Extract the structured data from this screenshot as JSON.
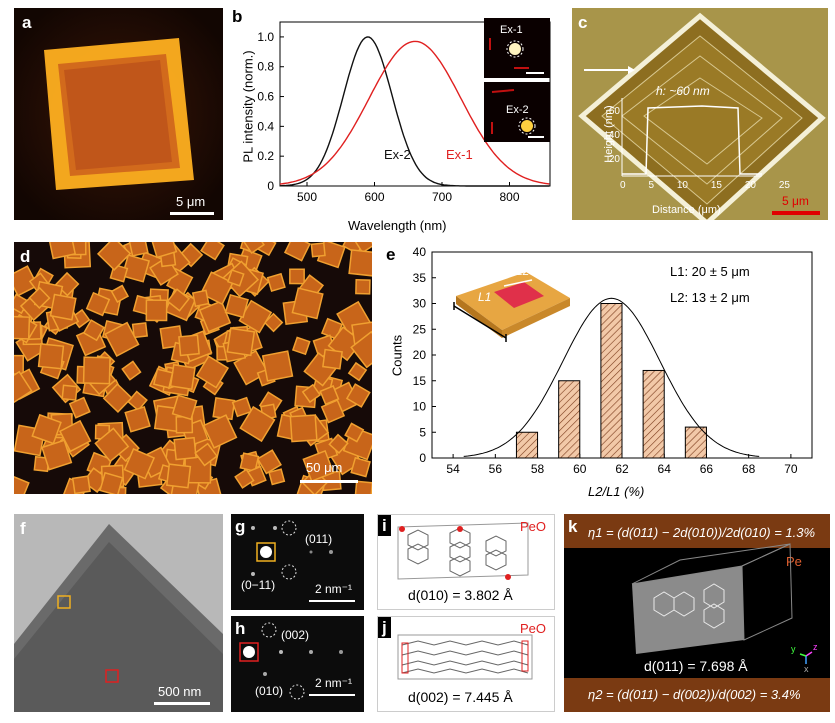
{
  "panels": {
    "a": {
      "label": "a",
      "scale": "5 μm"
    },
    "b": {
      "label": "b",
      "ylabel": "PL intensity (norm.)",
      "xlabel": "Wavelength (nm)",
      "curve_labels": {
        "ex2": "Ex-2",
        "ex1": "Ex-1"
      },
      "inset_labels": {
        "top": "Ex-1",
        "bottom": "Ex-2"
      },
      "xticks": [
        "500",
        "600",
        "700",
        "800"
      ],
      "yticks": [
        "0",
        "0.2",
        "0.4",
        "0.6",
        "0.8",
        "1.0"
      ]
    },
    "c": {
      "label": "c",
      "ylabel": "Height (nm)",
      "xlabel": "Distance (μm)",
      "annotation": "h: ~60 nm",
      "xticks": [
        "0",
        "5",
        "10",
        "15",
        "20",
        "25"
      ],
      "yticks": [
        "0",
        "20",
        "40",
        "60"
      ],
      "scale": "5 μm"
    },
    "d": {
      "label": "d",
      "scale": "50 μm"
    },
    "e": {
      "label": "e",
      "ylabel": "Counts",
      "xlabel": "L2/L1 (%)",
      "l1_text": "L1: 20 ± 5 μm",
      "l2_text": "L2: 13 ± 2 μm",
      "inset_l1": "L1",
      "inset_l2": "L2",
      "xticks": [
        "54",
        "56",
        "58",
        "60",
        "62",
        "64",
        "66",
        "68",
        "70"
      ],
      "yticks": [
        "0",
        "5",
        "10",
        "15",
        "20",
        "25",
        "30",
        "35",
        "40"
      ]
    },
    "f": {
      "label": "f",
      "scale": "500 nm"
    },
    "g": {
      "label": "g",
      "spot1": "(011)",
      "spot2": "(0−11)",
      "scale": "2 nm⁻¹"
    },
    "h": {
      "label": "h",
      "spot1": "(002)",
      "spot2": "(010)",
      "scale": "2 nm⁻¹"
    },
    "i": {
      "label": "i",
      "tag": "PeO",
      "dspacing": "d(010) = 3.802 Å"
    },
    "j": {
      "label": "j",
      "tag": "PeO",
      "dspacing": "d(002) = 7.445 Å"
    },
    "k": {
      "label": "k",
      "eq1": "η1 = (d(011) − 2d(010))/2d(010) = 1.3%",
      "tag": "Pe",
      "dspacing": "d(011) = 7.698 Å",
      "eq2": "η2 = (d(011) − d(002))/d(002) = 3.4%",
      "axes": {
        "y": "y",
        "z": "z",
        "x": "x"
      }
    }
  },
  "colors": {
    "ex1": "#e02020",
    "ex2": "#111111",
    "bars": "#f2c9a8",
    "bar_hatch": "#7a3a1a",
    "k_band": "#7a3a12"
  },
  "chart_data": [
    {
      "type": "line",
      "panel": "b",
      "xlabel": "Wavelength (nm)",
      "ylabel": "PL intensity (norm.)",
      "xlim": [
        460,
        860
      ],
      "ylim": [
        0,
        1.1
      ],
      "series": [
        {
          "name": "Ex-2",
          "peak": 590,
          "fwhm": 85,
          "x": [
            460,
            500,
            530,
            550,
            570,
            590,
            610,
            630,
            650,
            680,
            720,
            780,
            860
          ],
          "values": [
            0,
            0.01,
            0.1,
            0.35,
            0.8,
            1.0,
            0.82,
            0.5,
            0.24,
            0.06,
            0.01,
            0,
            0
          ]
        },
        {
          "name": "Ex-1",
          "peak": 660,
          "fwhm": 160,
          "x": [
            460,
            500,
            540,
            580,
            620,
            660,
            700,
            740,
            780,
            820,
            860
          ],
          "values": [
            0,
            0.01,
            0.08,
            0.35,
            0.78,
            0.97,
            0.8,
            0.45,
            0.17,
            0.04,
            0.01
          ]
        }
      ]
    },
    {
      "type": "bar",
      "panel": "e",
      "xlabel": "L2/L1 (%)",
      "ylabel": "Counts",
      "xlim": [
        53,
        71
      ],
      "ylim": [
        0,
        40
      ],
      "categories": [
        "58",
        "60",
        "62",
        "64",
        "66"
      ],
      "x": [
        57.5,
        59.5,
        61.5,
        63.5,
        65.5
      ],
      "values": [
        5,
        15,
        30,
        17,
        6
      ],
      "fit": {
        "type": "gaussian",
        "mean": 61.5,
        "sigma": 2.3,
        "amplitude": 31
      }
    }
  ]
}
